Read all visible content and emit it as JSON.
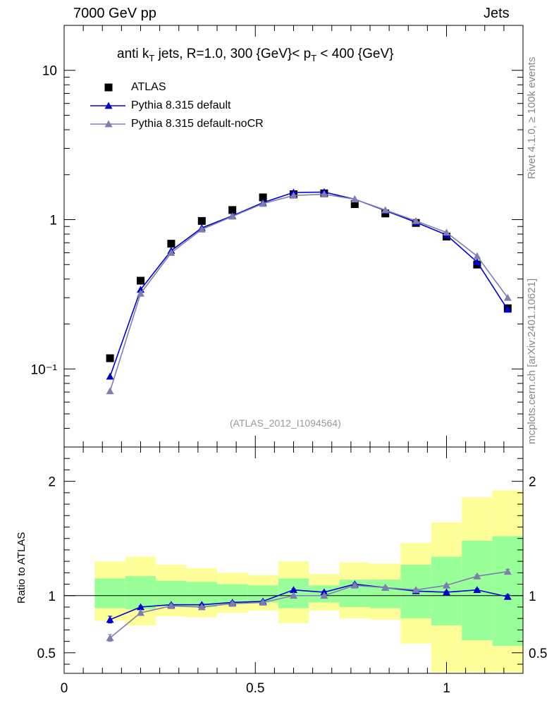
{
  "header": {
    "left": "7000 GeV pp",
    "right": "Jets"
  },
  "side_labels": {
    "rivet": "Rivet 4.1.0, ≥ 100k events",
    "mcplots": "mcplots.cern.ch [arXiv:2401.10621]"
  },
  "title": {
    "prefix": "anti k",
    "prefix_sub": "T",
    "middle": " jets, R=1.0,  300 {GeV}< p",
    "middle_sub": "T",
    "suffix": " < 400 {GeV}"
  },
  "analysis_id": "(ATLAS_2012_I1094564)",
  "legend": [
    {
      "label": "ATLAS",
      "color": "#000000",
      "marker": "square"
    },
    {
      "label": "Pythia 8.315 default",
      "color": "#0000cc",
      "marker": "triangle"
    },
    {
      "label": "Pythia 8.315 default-noCR",
      "color": "#7f7faf",
      "marker": "triangle"
    }
  ],
  "ratio_ylabel": "Ratio to ATLAS",
  "chart_data": [
    {
      "type": "scatter",
      "yscale": "log",
      "xlim": [
        0,
        1.2
      ],
      "ylim": [
        0.03,
        20
      ],
      "ytick_labels": [
        "10⁻¹",
        "1",
        "10"
      ],
      "ytick_values": [
        0.1,
        1,
        10
      ],
      "x": [
        0.12,
        0.2,
        0.28,
        0.36,
        0.44,
        0.52,
        0.6,
        0.68,
        0.76,
        0.84,
        0.92,
        1.0,
        1.08,
        1.16
      ],
      "series": [
        {
          "name": "ATLAS",
          "color": "#000000",
          "values": [
            0.118,
            0.39,
            0.69,
            0.98,
            1.16,
            1.41,
            1.48,
            1.5,
            1.27,
            1.1,
            0.95,
            0.77,
            0.5,
            0.255
          ]
        },
        {
          "name": "Pythia 8.315 default",
          "color": "#0000cc",
          "values": [
            0.089,
            0.34,
            0.62,
            0.88,
            1.06,
            1.3,
            1.52,
            1.53,
            1.37,
            1.15,
            0.96,
            0.79,
            0.52,
            0.25
          ]
        },
        {
          "name": "Pythia 8.315 default-noCR",
          "color": "#7f7faf",
          "values": [
            0.071,
            0.32,
            0.6,
            0.86,
            1.05,
            1.28,
            1.45,
            1.48,
            1.37,
            1.16,
            0.98,
            0.82,
            0.57,
            0.3
          ]
        }
      ]
    },
    {
      "type": "scatter",
      "title": "Ratio to ATLAS",
      "xlim": [
        0,
        1.2
      ],
      "ylim": [
        0.32,
        2.3
      ],
      "xtick_labels": [
        "0",
        "0.5",
        "1"
      ],
      "xtick_values": [
        0,
        0.5,
        1
      ],
      "ytick_labels": [
        "0.5",
        "1",
        "2"
      ],
      "ytick_values": [
        0.5,
        1,
        2
      ],
      "x": [
        0.12,
        0.2,
        0.28,
        0.36,
        0.44,
        0.52,
        0.6,
        0.68,
        0.76,
        0.84,
        0.92,
        1.0,
        1.08,
        1.16
      ],
      "bin_edges": [
        0.08,
        0.16,
        0.24,
        0.32,
        0.4,
        0.48,
        0.56,
        0.64,
        0.72,
        0.8,
        0.88,
        0.96,
        1.04,
        1.12,
        1.2
      ],
      "band_yellow": {
        "low": [
          0.78,
          0.74,
          0.82,
          0.81,
          0.85,
          0.87,
          0.76,
          0.87,
          0.8,
          0.79,
          0.58,
          0.33,
          0.33,
          0.33
        ],
        "high": [
          1.3,
          1.34,
          1.27,
          1.24,
          1.2,
          1.18,
          1.3,
          1.19,
          1.29,
          1.28,
          1.46,
          1.64,
          1.86,
          1.92
        ]
      },
      "band_green": {
        "low": [
          0.89,
          0.88,
          0.91,
          0.9,
          0.93,
          0.94,
          0.89,
          0.94,
          0.9,
          0.89,
          0.8,
          0.74,
          0.61,
          0.56
        ],
        "high": [
          1.15,
          1.17,
          1.13,
          1.12,
          1.1,
          1.09,
          1.15,
          1.09,
          1.14,
          1.14,
          1.27,
          1.34,
          1.48,
          1.52
        ]
      },
      "series": [
        {
          "name": "Pythia 8.315 default",
          "color": "#0000cc",
          "values": [
            0.79,
            0.9,
            0.92,
            0.92,
            0.94,
            0.95,
            1.05,
            1.03,
            1.1,
            1.07,
            1.04,
            1.03,
            1.05,
            0.99
          ],
          "errors": [
            0.03,
            0.01,
            0.01,
            0.01,
            0.01,
            0.01,
            0.01,
            0.01,
            0.01,
            0.01,
            0.01,
            0.01,
            0.01,
            0.02
          ]
        },
        {
          "name": "Pythia 8.315 default-noCR",
          "color": "#7f7faf",
          "values": [
            0.63,
            0.85,
            0.91,
            0.9,
            0.93,
            0.94,
            1.0,
            1.0,
            1.09,
            1.07,
            1.05,
            1.09,
            1.17,
            1.21
          ],
          "errors": [
            0.03,
            0.01,
            0.01,
            0.01,
            0.01,
            0.01,
            0.01,
            0.01,
            0.01,
            0.01,
            0.01,
            0.01,
            0.01,
            0.02
          ]
        }
      ]
    }
  ]
}
